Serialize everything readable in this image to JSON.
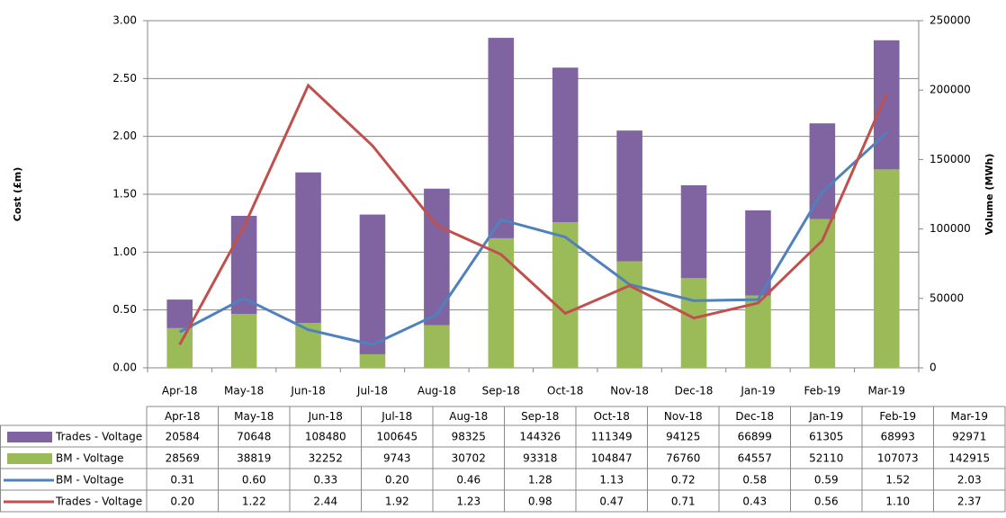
{
  "chart_data": {
    "type": "combo",
    "categories": [
      "Apr-18",
      "May-18",
      "Jun-18",
      "Jul-18",
      "Aug-18",
      "Sep-18",
      "Oct-18",
      "Nov-18",
      "Dec-18",
      "Jan-19",
      "Feb-19",
      "Mar-19"
    ],
    "y_label": "Cost (£m)",
    "y2_label": "Volume (MWh)",
    "ylim": [
      0,
      3
    ],
    "yticks": [
      {
        "value": 0,
        "label": "0.00"
      },
      {
        "value": 0.5,
        "label": "0.50"
      },
      {
        "value": 1,
        "label": "1.00"
      },
      {
        "value": 1.5,
        "label": "1.50"
      },
      {
        "value": 2,
        "label": "2.00"
      },
      {
        "value": 2.5,
        "label": "2.50"
      },
      {
        "value": 3,
        "label": "3.00"
      }
    ],
    "y2lim": [
      0,
      250000
    ],
    "y2ticks": [
      0,
      50000,
      100000,
      150000,
      200000,
      250000
    ],
    "grid": true,
    "series": [
      {
        "name": "Trades - Voltage",
        "type": "bar",
        "axis": "y2",
        "color": "#8064a2",
        "values": [
          20584,
          70648,
          108480,
          100645,
          98325,
          144326,
          111349,
          94125,
          66899,
          61305,
          68993,
          92971
        ]
      },
      {
        "name": "BM - Voltage",
        "type": "bar",
        "axis": "y2",
        "color": "#9bbb59",
        "values": [
          28569,
          38819,
          32252,
          9743,
          30702,
          93318,
          104847,
          76760,
          64557,
          52110,
          107073,
          142915
        ]
      },
      {
        "name": "BM - Voltage",
        "type": "line",
        "axis": "y",
        "color": "#4f81bd",
        "values": [
          0.31,
          0.6,
          0.33,
          0.2,
          0.46,
          1.28,
          1.13,
          0.72,
          0.58,
          0.59,
          1.52,
          2.03
        ],
        "value_labels": [
          "0.31",
          "0.60",
          "0.33",
          "0.20",
          "0.46",
          "1.28",
          "1.13",
          "0.72",
          "0.58",
          "0.59",
          "1.52",
          "2.03"
        ]
      },
      {
        "name": "Trades - Voltage",
        "type": "line",
        "axis": "y",
        "color": "#c0504d",
        "values": [
          0.2,
          1.22,
          2.44,
          1.92,
          1.23,
          0.98,
          0.47,
          0.71,
          0.43,
          0.56,
          1.1,
          2.37
        ],
        "value_labels": [
          "0.20",
          "1.22",
          "2.44",
          "1.92",
          "1.23",
          "0.98",
          "0.47",
          "0.71",
          "0.43",
          "0.56",
          "1.10",
          "2.37"
        ]
      }
    ]
  }
}
